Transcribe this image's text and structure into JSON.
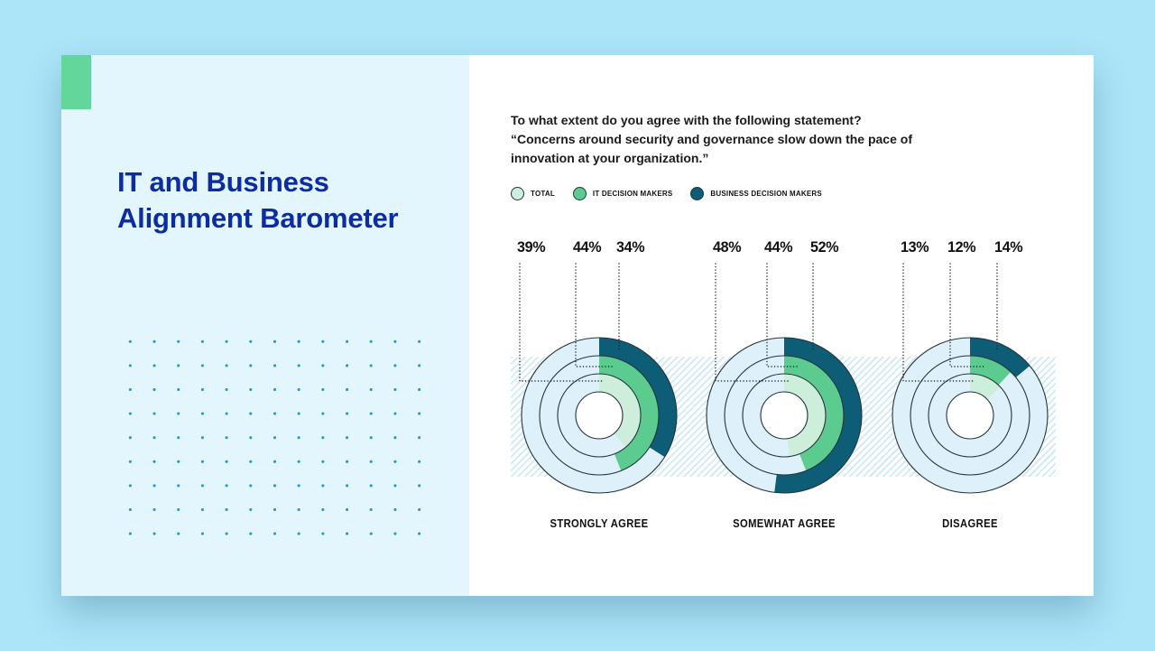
{
  "sidebar": {
    "title": "IT and Business\nAlignment Barometer",
    "accent_color": "#63d69c",
    "title_color": "#0c2da1"
  },
  "main": {
    "question": "To what extent do you agree with the following statement?\n“Concerns around security and governance slow down the pace of\ninnovation at your organization.”"
  },
  "legend": {
    "items": [
      {
        "label": "TOTAL",
        "color": "#cdeeda"
      },
      {
        "label": "IT DECISION MAKERS",
        "color": "#5bcb90"
      },
      {
        "label": "BUSINESS DECISION MAKERS",
        "color": "#0d5d77"
      }
    ]
  },
  "chart_data": {
    "type": "donut",
    "title": "To what extent do you agree with the following statement? “Concerns around security and governance slow down the pace of innovation at your organization.”",
    "categories": [
      "STRONGLY AGREE",
      "SOMEWHAT AGREE",
      "DISAGREE"
    ],
    "series": [
      {
        "name": "TOTAL",
        "ring": "inner",
        "color": "#cdeeda",
        "values": [
          39,
          48,
          13
        ]
      },
      {
        "name": "IT DECISION MAKERS",
        "ring": "middle",
        "color": "#5bcb90",
        "values": [
          44,
          44,
          12
        ]
      },
      {
        "name": "BUSINESS DECISION MAKERS",
        "ring": "outer",
        "color": "#0d5d77",
        "values": [
          34,
          52,
          14
        ]
      }
    ],
    "unit": "%",
    "empty_color": "#def1fb",
    "ring_outline_color": "#24343c",
    "start_angle_deg": 0,
    "direction": "clockwise",
    "legend_position": "top"
  }
}
